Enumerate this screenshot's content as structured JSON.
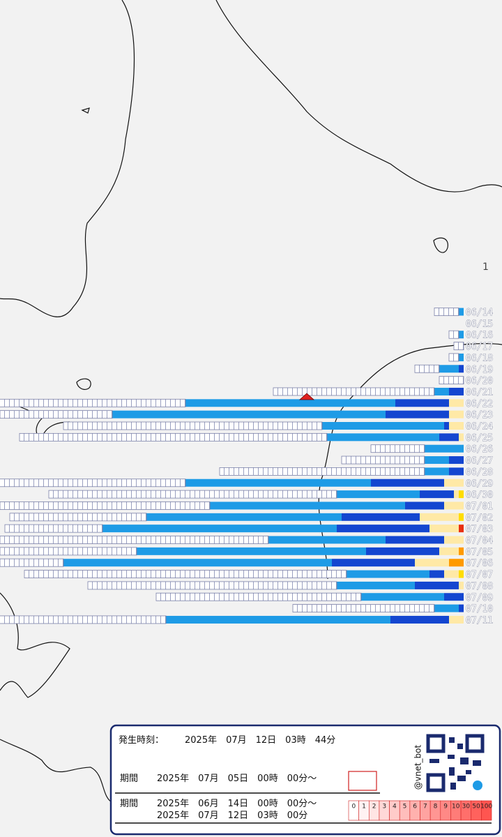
{
  "marker_label": "1",
  "colors": [
    "#ffffff",
    "#1e9be6",
    "#1446d0",
    "#ffe9a6",
    "#ffdd00",
    "#ff9a00",
    "#e83010"
  ],
  "rows": [
    {
      "date": "06/14",
      "counts": [
        5,
        1,
        0,
        0,
        0,
        0,
        0
      ]
    },
    {
      "date": "06/15",
      "counts": [
        0,
        0,
        0,
        0,
        0,
        0,
        0
      ]
    },
    {
      "date": "06/16",
      "counts": [
        2,
        1,
        0,
        0,
        0,
        0,
        0
      ]
    },
    {
      "date": "06/17",
      "counts": [
        2,
        0,
        0,
        0,
        0,
        0,
        0
      ]
    },
    {
      "date": "06/18",
      "counts": [
        2,
        1,
        0,
        0,
        0,
        0,
        0
      ]
    },
    {
      "date": "06/19",
      "counts": [
        5,
        4,
        1,
        0,
        0,
        0,
        0
      ]
    },
    {
      "date": "06/20",
      "counts": [
        5,
        0,
        0,
        0,
        0,
        0,
        0
      ]
    },
    {
      "date": "06/21",
      "counts": [
        33,
        3,
        3,
        0,
        0,
        0,
        0
      ]
    },
    {
      "date": "06/22",
      "counts": [
        39,
        43,
        11,
        3,
        0,
        0,
        0
      ]
    },
    {
      "date": "06/23",
      "counts": [
        23,
        56,
        13,
        3,
        0,
        0,
        0
      ]
    },
    {
      "date": "06/24",
      "counts": [
        53,
        25,
        1,
        3,
        0,
        0,
        0
      ]
    },
    {
      "date": "06/25",
      "counts": [
        63,
        23,
        4,
        1,
        0,
        0,
        0
      ]
    },
    {
      "date": "06/26",
      "counts": [
        11,
        8,
        0,
        0,
        0,
        0,
        0
      ]
    },
    {
      "date": "06/27",
      "counts": [
        17,
        5,
        3,
        0,
        0,
        0,
        0
      ]
    },
    {
      "date": "06/28",
      "counts": [
        42,
        5,
        3,
        0,
        0,
        0,
        0
      ]
    },
    {
      "date": "06/29",
      "counts": [
        39,
        38,
        15,
        4,
        0,
        0,
        0
      ]
    },
    {
      "date": "06/30",
      "counts": [
        59,
        17,
        7,
        1,
        1,
        0,
        0
      ]
    },
    {
      "date": "07/01",
      "counts": [
        43,
        40,
        8,
        4,
        0,
        0,
        0
      ]
    },
    {
      "date": "07/02",
      "counts": [
        28,
        40,
        16,
        8,
        1,
        0,
        0
      ]
    },
    {
      "date": "07/03",
      "counts": [
        20,
        48,
        19,
        6,
        0,
        0,
        1
      ]
    },
    {
      "date": "07/04",
      "counts": [
        55,
        24,
        12,
        4,
        0,
        0,
        0
      ]
    },
    {
      "date": "07/05",
      "counts": [
        28,
        47,
        15,
        4,
        0,
        1,
        0
      ]
    },
    {
      "date": "07/06",
      "counts": [
        13,
        55,
        17,
        7,
        0,
        3,
        0
      ]
    },
    {
      "date": "07/07",
      "counts": [
        66,
        17,
        3,
        3,
        1,
        0,
        0
      ]
    },
    {
      "date": "07/08",
      "counts": [
        51,
        16,
        9,
        1,
        0,
        0,
        0
      ]
    },
    {
      "date": "07/09",
      "counts": [
        42,
        17,
        4,
        0,
        0,
        0,
        0
      ]
    },
    {
      "date": "07/10",
      "counts": [
        29,
        5,
        1,
        0,
        0,
        0,
        0
      ]
    },
    {
      "date": "07/11",
      "counts": [
        37,
        46,
        12,
        3,
        0,
        0,
        0
      ]
    }
  ],
  "info": {
    "time_label": "発生時刻：",
    "time": "2025年　07月　12日　03時　44分",
    "period1_label": "期間",
    "period1": "2025年　07月　05日　00時　00分～",
    "period2_label": "期間",
    "period2_start": "2025年　06月　14日　00時　00分～",
    "period2_end": "2025年　07月　12日　03時　00分",
    "account": "@vnet_bot",
    "scale": [
      0,
      1,
      2,
      3,
      4,
      5,
      6,
      7,
      8,
      9,
      10,
      30,
      50,
      100
    ]
  }
}
